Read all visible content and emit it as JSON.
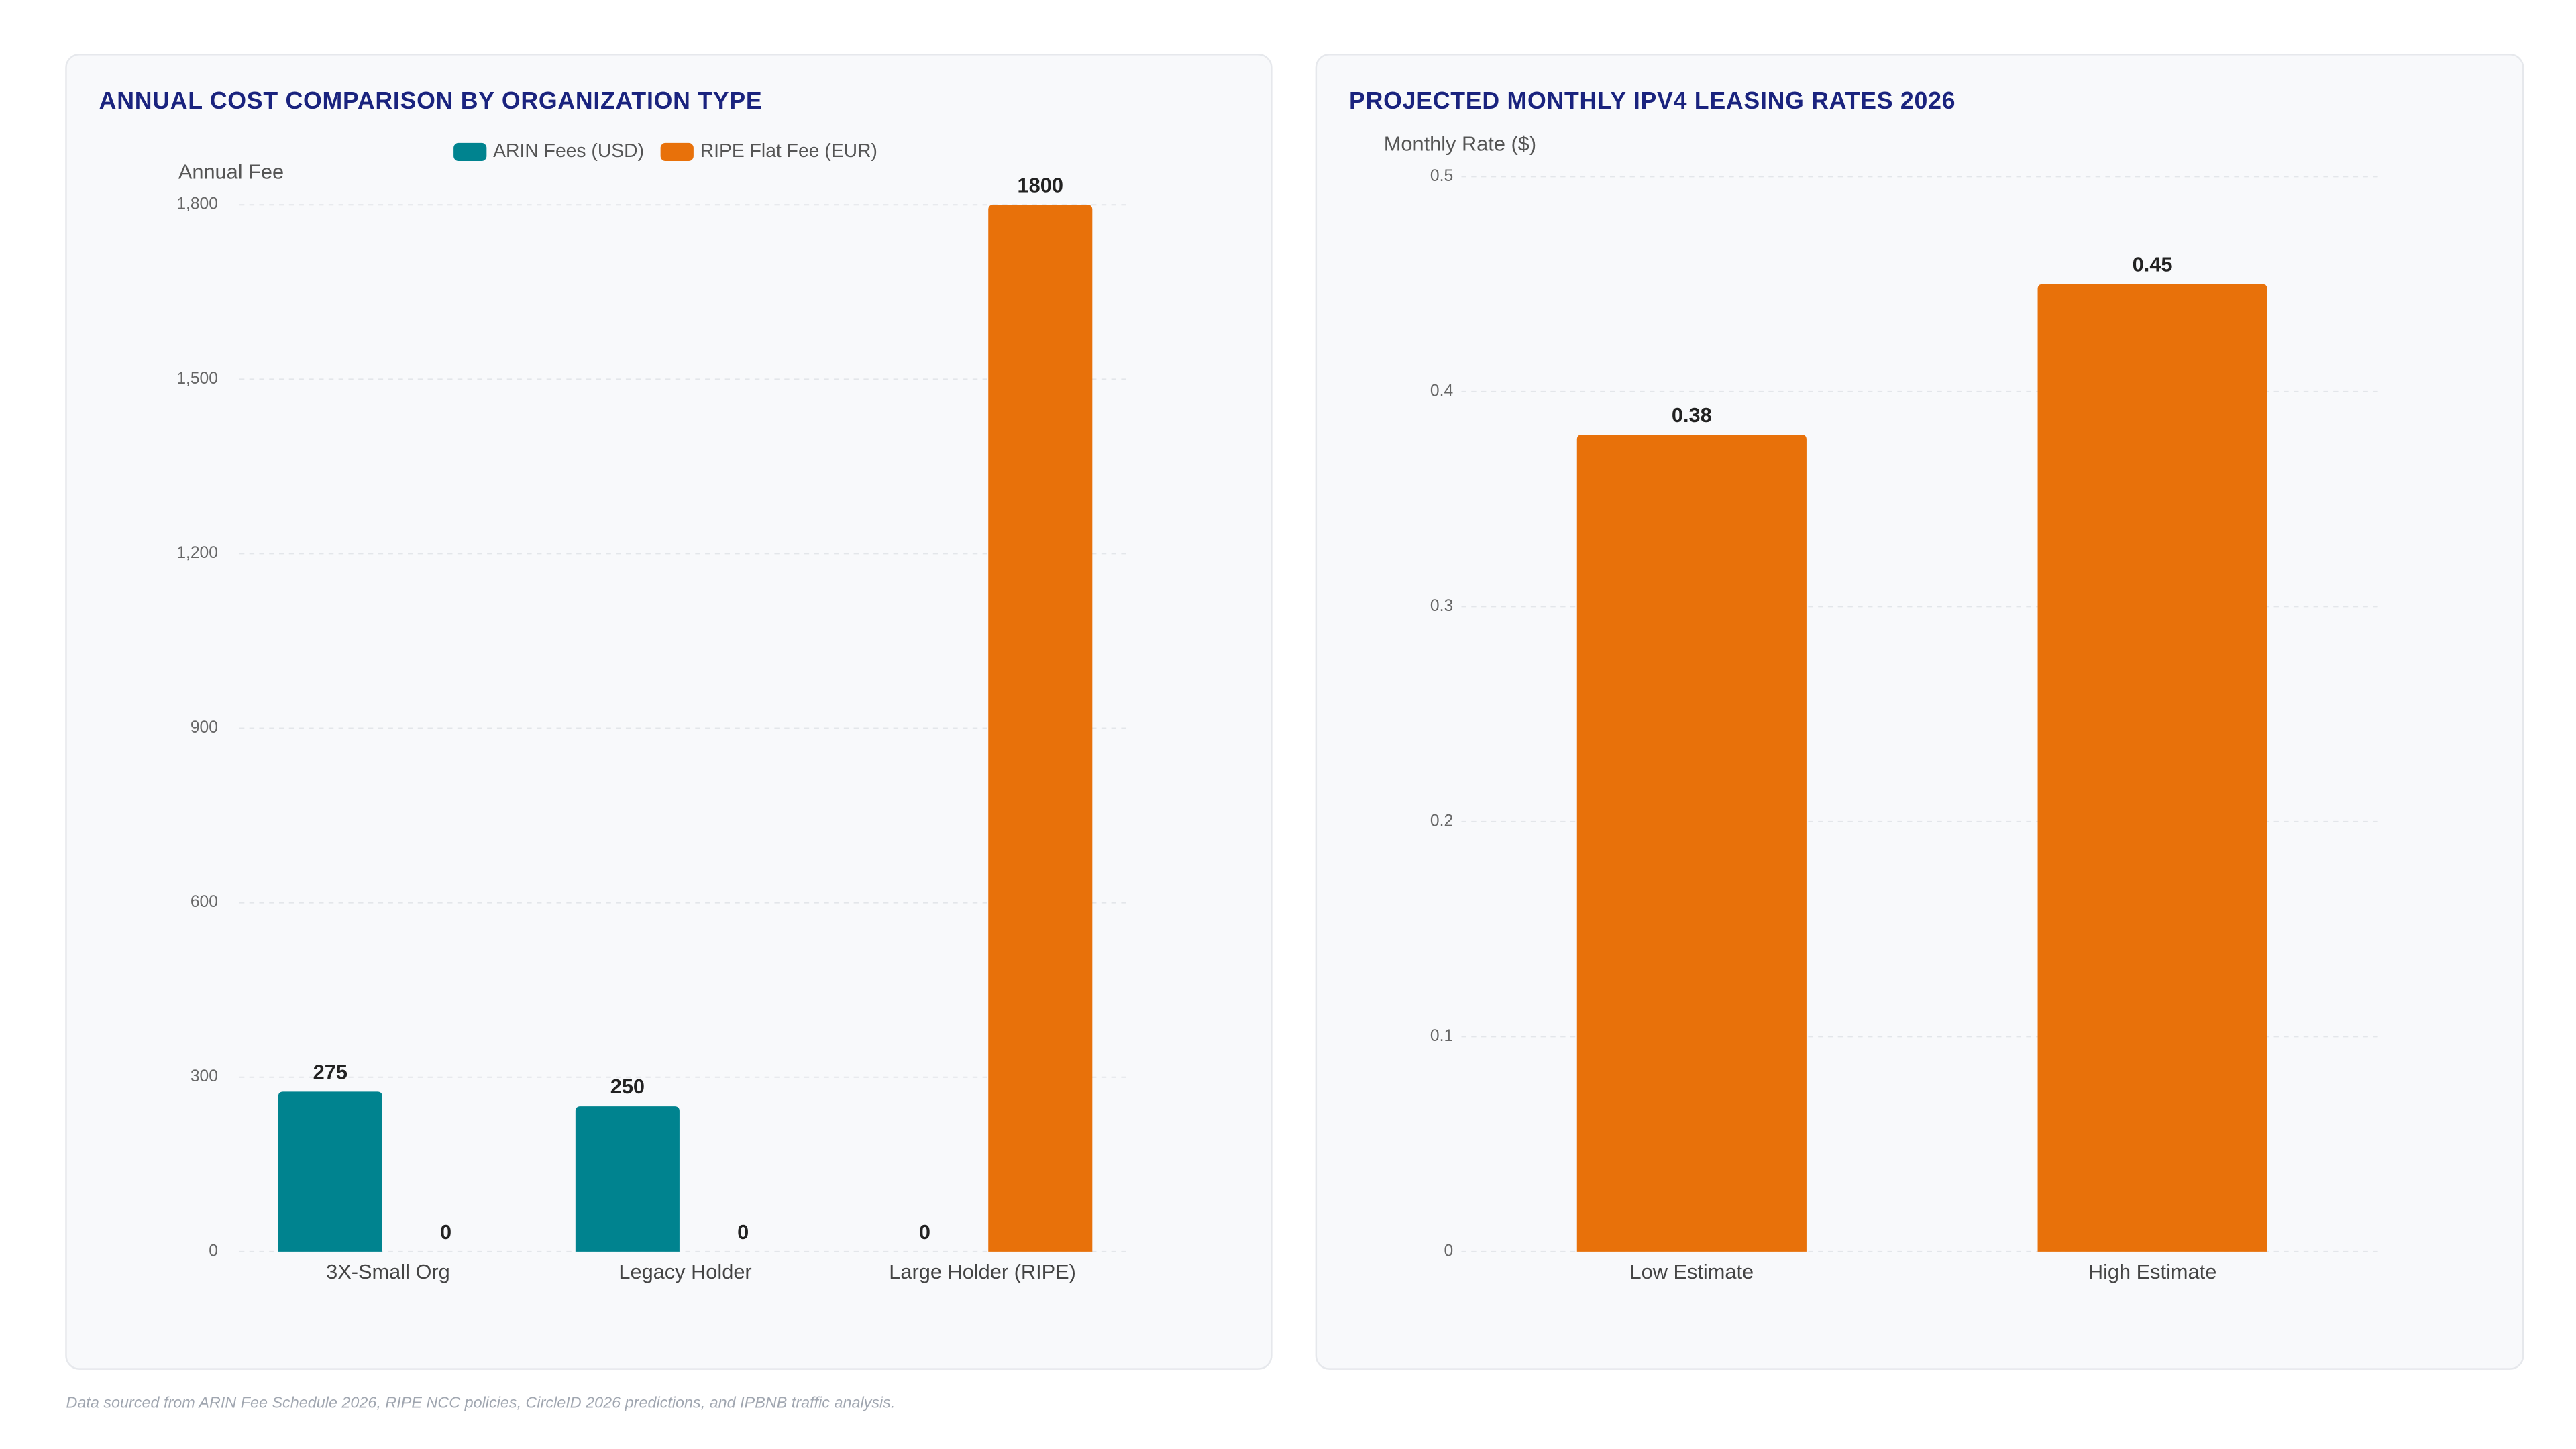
{
  "chart_data": [
    {
      "type": "bar",
      "title": "ANNUAL COST COMPARISON BY ORGANIZATION TYPE",
      "y_label": "Annual Fee",
      "categories": [
        "3X-Small Org",
        "Legacy Holder",
        "Large Holder (RIPE)"
      ],
      "series": [
        {
          "name": "ARIN Fees (USD)",
          "color": "#00838f",
          "values": [
            275,
            250,
            0
          ]
        },
        {
          "name": "RIPE Flat Fee (EUR)",
          "color": "#e8710a",
          "values": [
            0,
            0,
            1800
          ]
        }
      ],
      "ylim": [
        0,
        1800
      ],
      "yticks": [
        0,
        300,
        600,
        900,
        {
          "value": 1200,
          "label": "1,200"
        },
        {
          "value": 1500,
          "label": "1,500"
        },
        {
          "value": 1800,
          "label": "1,800"
        }
      ],
      "grid": true,
      "legend": "top"
    },
    {
      "type": "bar",
      "title": "PROJECTED MONTHLY IPV4 LEASING RATES 2026",
      "y_label": "Monthly Rate ($)",
      "categories": [
        "Low Estimate",
        "High Estimate"
      ],
      "series": [
        {
          "color": "#e8710a",
          "values": [
            0.38,
            0.45
          ]
        }
      ],
      "ylim": [
        0,
        0.5
      ],
      "yticks": [
        0,
        0.1,
        0.2,
        0.3,
        0.4,
        0.5
      ],
      "grid": true
    }
  ],
  "footer": "Data sourced from ARIN Fee Schedule 2026, RIPE NCC policies, CircleID 2026 predictions, and IPBNB traffic analysis."
}
